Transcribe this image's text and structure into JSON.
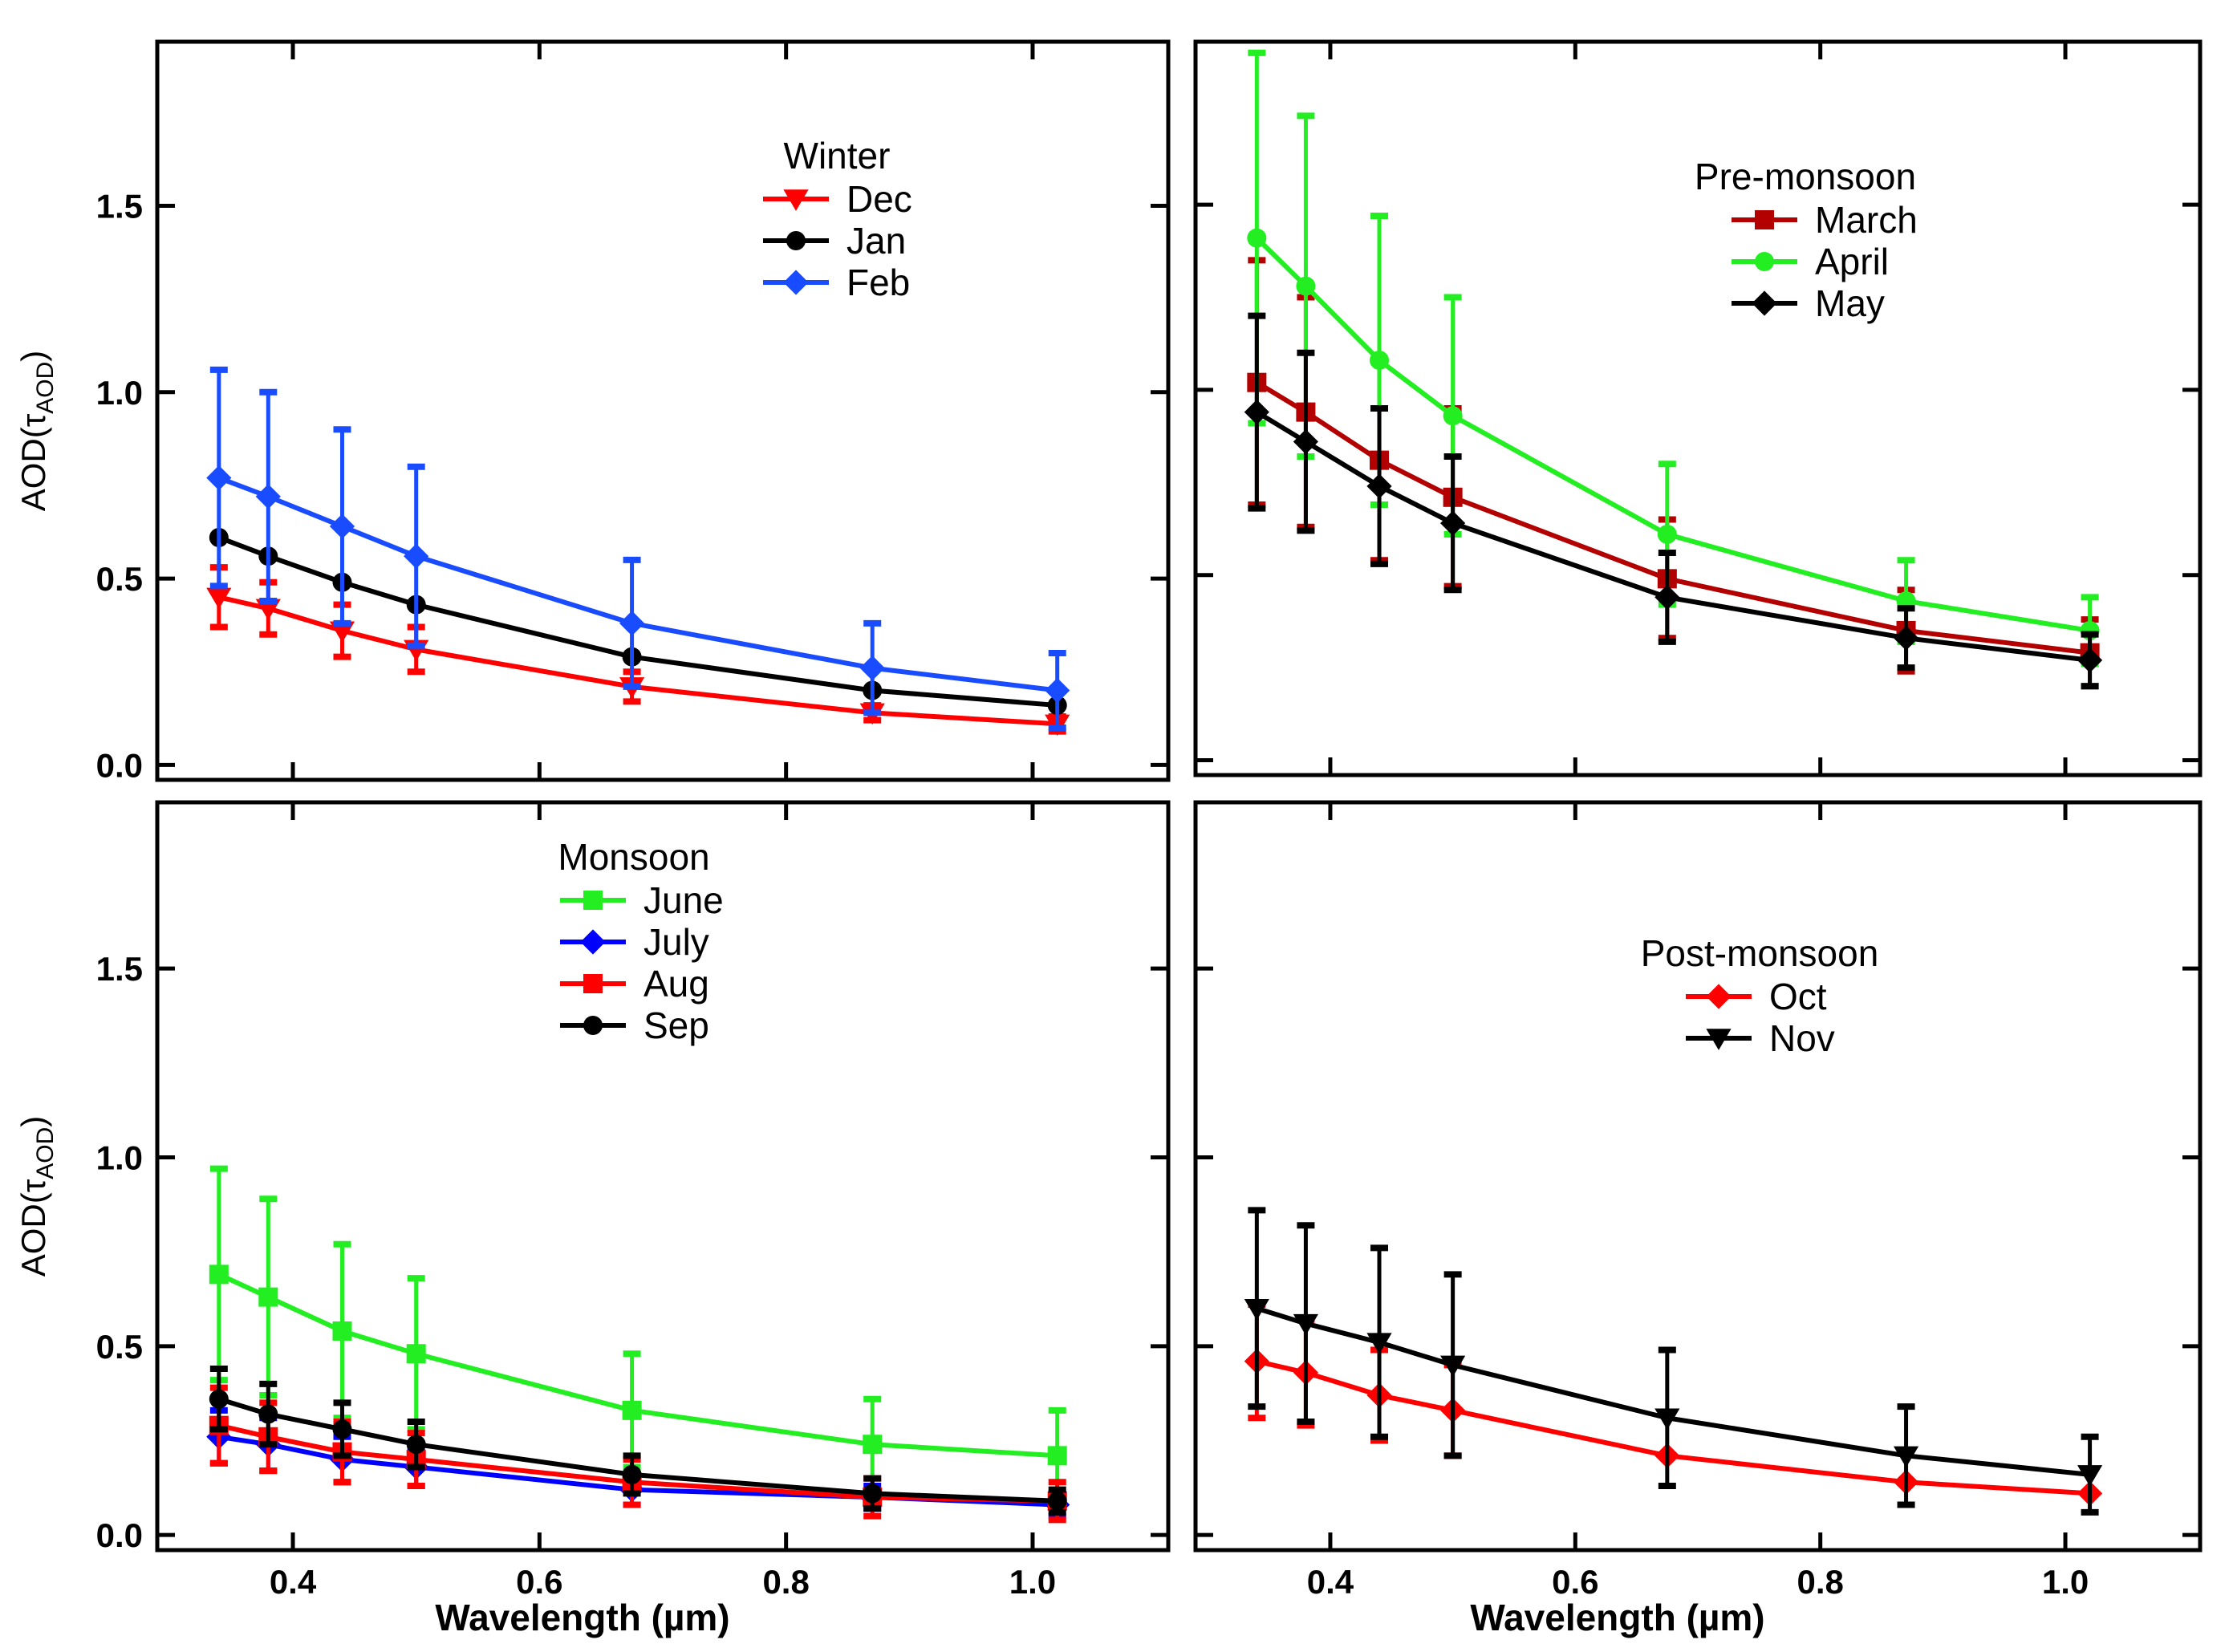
{
  "chart_data": [
    {
      "type": "line",
      "panel": "top-left",
      "legend_title": "Winter",
      "legend_placement": "top-right",
      "ylabel": "AOD(τAOD)",
      "xlabel": "",
      "xlim": [
        0.29,
        1.11
      ],
      "ylim": [
        -0.04,
        1.94
      ],
      "yticks": [
        "0.0",
        "0.5",
        "1.0",
        "1.5"
      ],
      "xticks": [],
      "x": [
        0.34,
        0.38,
        0.44,
        0.5,
        0.675,
        0.87,
        1.02
      ],
      "series": [
        {
          "name": "Dec",
          "color": "#ff0000",
          "marker": "triangle-down",
          "values": [
            0.45,
            0.42,
            0.36,
            0.31,
            0.21,
            0.14,
            0.11
          ],
          "errors": [
            0.08,
            0.07,
            0.07,
            0.06,
            0.04,
            0.02,
            0.02
          ]
        },
        {
          "name": "Jan",
          "color": "#000000",
          "marker": "circle",
          "values": [
            0.61,
            0.56,
            0.49,
            0.43,
            0.29,
            0.2,
            0.16
          ],
          "errors": [
            0.0,
            0.0,
            0.0,
            0.0,
            0.0,
            0.0,
            0.0
          ]
        },
        {
          "name": "Feb",
          "color": "#1a4cff",
          "marker": "diamond",
          "values": [
            0.77,
            0.72,
            0.64,
            0.56,
            0.38,
            0.26,
            0.2
          ],
          "errors": [
            0.29,
            0.28,
            0.26,
            0.24,
            0.17,
            0.12,
            0.1
          ]
        }
      ]
    },
    {
      "type": "line",
      "panel": "top-right",
      "legend_title": "Pre-monsoon",
      "legend_placement": "top-right",
      "ylabel": "",
      "xlabel": "",
      "xlim": [
        0.29,
        1.11
      ],
      "ylim": [
        -0.04,
        1.94
      ],
      "yticks": [],
      "xticks": [],
      "x": [
        0.34,
        0.38,
        0.44,
        0.5,
        0.675,
        0.87,
        1.02
      ],
      "series": [
        {
          "name": "March",
          "color": "#b30000",
          "marker": "square",
          "values": [
            1.02,
            0.94,
            0.81,
            0.71,
            0.49,
            0.35,
            0.29
          ],
          "errors": [
            0.33,
            0.31,
            0.27,
            0.24,
            0.16,
            0.11,
            0.09
          ]
        },
        {
          "name": "April",
          "color": "#22ee22",
          "marker": "circle",
          "values": [
            1.41,
            1.28,
            1.08,
            0.93,
            0.61,
            0.43,
            0.35
          ],
          "errors": [
            0.5,
            0.46,
            0.39,
            0.32,
            0.19,
            0.11,
            0.09
          ]
        },
        {
          "name": "May",
          "color": "#000000",
          "marker": "diamond",
          "values": [
            0.94,
            0.86,
            0.74,
            0.64,
            0.44,
            0.33,
            0.27
          ],
          "errors": [
            0.26,
            0.24,
            0.21,
            0.18,
            0.12,
            0.08,
            0.07
          ]
        }
      ]
    },
    {
      "type": "line",
      "panel": "bottom-left",
      "legend_title": "Monsoon",
      "legend_placement": "top-center",
      "ylabel": "AOD(τAOD)",
      "xlabel": "Wavelength (µm)",
      "xlim": [
        0.29,
        1.11
      ],
      "ylim": [
        -0.04,
        1.94
      ],
      "yticks": [
        "0.0",
        "0.5",
        "1.0",
        "1.5"
      ],
      "xticks": [
        "0.4",
        "0.6",
        "0.8",
        "1.0"
      ],
      "x": [
        0.34,
        0.38,
        0.44,
        0.5,
        0.675,
        0.87,
        1.02
      ],
      "series": [
        {
          "name": "June",
          "color": "#22ee22",
          "marker": "square",
          "values": [
            0.69,
            0.63,
            0.54,
            0.48,
            0.33,
            0.24,
            0.21
          ],
          "errors": [
            0.28,
            0.26,
            0.23,
            0.2,
            0.15,
            0.12,
            0.12
          ]
        },
        {
          "name": "July",
          "color": "#0000ff",
          "marker": "diamond",
          "values": [
            0.26,
            0.24,
            0.2,
            0.18,
            0.12,
            0.1,
            0.08
          ],
          "errors": [
            0.07,
            0.07,
            0.06,
            0.05,
            0.04,
            0.03,
            0.03
          ]
        },
        {
          "name": "Aug",
          "color": "#ff0000",
          "marker": "square",
          "values": [
            0.29,
            0.26,
            0.22,
            0.2,
            0.14,
            0.1,
            0.09
          ],
          "errors": [
            0.1,
            0.09,
            0.08,
            0.07,
            0.06,
            0.05,
            0.05
          ]
        },
        {
          "name": "Sep",
          "color": "#000000",
          "marker": "circle",
          "values": [
            0.36,
            0.32,
            0.28,
            0.24,
            0.16,
            0.11,
            0.09
          ],
          "errors": [
            0.08,
            0.08,
            0.07,
            0.06,
            0.05,
            0.04,
            0.03
          ]
        }
      ]
    },
    {
      "type": "line",
      "panel": "bottom-right",
      "legend_title": "Post-monsoon",
      "legend_placement": "top-right",
      "ylabel": "",
      "xlabel": "Wavelength (µm)",
      "xlim": [
        0.29,
        1.11
      ],
      "ylim": [
        -0.04,
        1.94
      ],
      "yticks": [],
      "xticks": [
        "0.4",
        "0.6",
        "0.8",
        "1.0"
      ],
      "x": [
        0.34,
        0.38,
        0.44,
        0.5,
        0.675,
        0.87,
        1.02
      ],
      "series": [
        {
          "name": "Oct",
          "color": "#ff0000",
          "marker": "diamond",
          "values": [
            0.46,
            0.43,
            0.37,
            0.33,
            0.21,
            0.14,
            0.11
          ],
          "errors": [
            0.15,
            0.14,
            0.12,
            0.12,
            0.0,
            0.0,
            0.0
          ]
        },
        {
          "name": "Nov",
          "color": "#000000",
          "marker": "triangle-down",
          "values": [
            0.6,
            0.56,
            0.51,
            0.45,
            0.31,
            0.21,
            0.16
          ],
          "errors": [
            0.26,
            0.26,
            0.25,
            0.24,
            0.18,
            0.13,
            0.1
          ]
        }
      ]
    }
  ]
}
